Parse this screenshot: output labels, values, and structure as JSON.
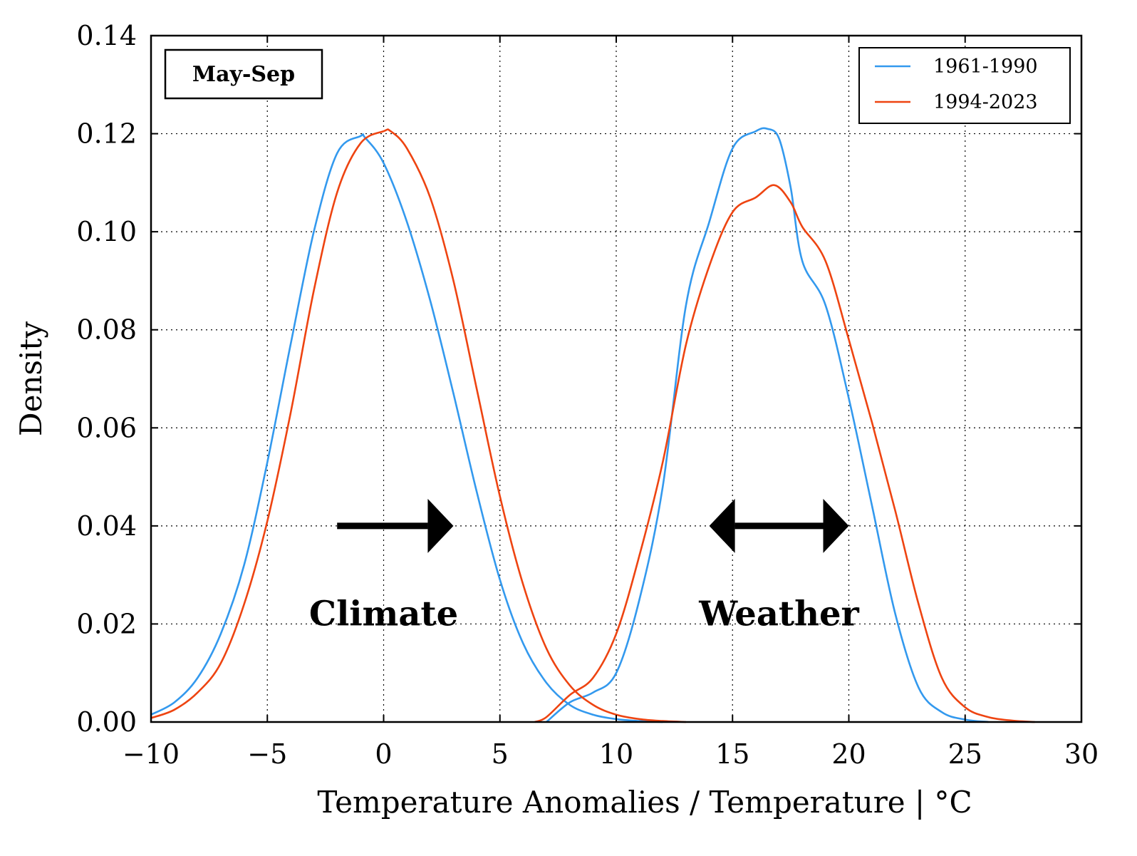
{
  "chart_data": {
    "type": "line",
    "xlabel": "Temperature Anomalies / Temperature | °C",
    "ylabel": "Density",
    "xlim": [
      -10,
      30
    ],
    "ylim": [
      0,
      0.14
    ],
    "x_ticks": [
      -10,
      -5,
      0,
      5,
      10,
      15,
      20,
      25,
      30
    ],
    "x_tick_labels": [
      "−10",
      "−5",
      "0",
      "5",
      "10",
      "15",
      "20",
      "25",
      "30"
    ],
    "y_ticks": [
      0,
      0.02,
      0.04,
      0.06,
      0.08,
      0.1,
      0.12,
      0.14
    ],
    "y_tick_labels": [
      "0.00",
      "0.02",
      "0.04",
      "0.06",
      "0.08",
      "0.10",
      "0.12",
      "0.14"
    ],
    "grid": true,
    "season_label": "May-Sep",
    "legend": {
      "placement": "top-right",
      "entries": [
        "1961-1990",
        "1994-2023"
      ]
    },
    "annotations": [
      {
        "text": "Climate",
        "x": 0,
        "y": 0.022,
        "arrow": "right",
        "arrow_from": -2,
        "arrow_to": 3,
        "arrow_y": 0.04
      },
      {
        "text": "Weather",
        "x": 17,
        "y": 0.022,
        "arrow": "both",
        "arrow_from": 14,
        "arrow_to": 20,
        "arrow_y": 0.04
      }
    ],
    "series": [
      {
        "name": "1961-1990",
        "group": "anomaly",
        "color": "#3399ee",
        "x": [
          -10,
          -9,
          -8,
          -7,
          -6,
          -5,
          -4,
          -3,
          -2,
          -1,
          -0.8,
          0,
          1,
          2,
          3,
          4,
          5,
          6,
          7,
          8,
          9,
          10,
          11,
          12
        ],
        "y": [
          0.0015,
          0.004,
          0.009,
          0.018,
          0.032,
          0.053,
          0.077,
          0.1,
          0.116,
          0.1195,
          0.1192,
          0.114,
          0.102,
          0.086,
          0.067,
          0.047,
          0.029,
          0.016,
          0.008,
          0.0035,
          0.0015,
          0.0006,
          0.0002,
          0
        ]
      },
      {
        "name": "1961-1990",
        "group": "temperature",
        "color": "#3399ee",
        "x": [
          7,
          8,
          9,
          10,
          11,
          12,
          13,
          14,
          15,
          16,
          16.5,
          17,
          17.5,
          18,
          19,
          20,
          21,
          22,
          23,
          24,
          25,
          26
        ],
        "y": [
          0,
          0.004,
          0.006,
          0.01,
          0.025,
          0.048,
          0.085,
          0.102,
          0.117,
          0.1205,
          0.121,
          0.119,
          0.109,
          0.094,
          0.085,
          0.066,
          0.044,
          0.022,
          0.007,
          0.002,
          0.0005,
          0
        ]
      },
      {
        "name": "1994-2023",
        "group": "anomaly",
        "color": "#ee4411",
        "x": [
          -10,
          -9,
          -8,
          -7,
          -6,
          -5,
          -4,
          -3,
          -2,
          -1,
          0,
          0.3,
          1,
          2,
          3,
          4,
          5,
          6,
          7,
          8,
          9,
          10,
          11,
          12,
          13
        ],
        "y": [
          0.0008,
          0.0025,
          0.006,
          0.012,
          0.024,
          0.041,
          0.063,
          0.088,
          0.108,
          0.118,
          0.1205,
          0.1205,
          0.117,
          0.107,
          0.09,
          0.068,
          0.046,
          0.028,
          0.015,
          0.0075,
          0.0035,
          0.0015,
          0.0006,
          0.0002,
          0
        ]
      },
      {
        "name": "1994-2023",
        "group": "temperature",
        "color": "#ee4411",
        "x": [
          6.5,
          7,
          8,
          9,
          10,
          11,
          12,
          13,
          14,
          15,
          16,
          16.8,
          17.5,
          18,
          19,
          20,
          21,
          22,
          23,
          24,
          25,
          26,
          27,
          28
        ],
        "y": [
          0,
          0.001,
          0.0055,
          0.009,
          0.018,
          0.034,
          0.053,
          0.077,
          0.093,
          0.104,
          0.107,
          0.1095,
          0.106,
          0.101,
          0.094,
          0.078,
          0.061,
          0.043,
          0.024,
          0.009,
          0.003,
          0.001,
          0.0003,
          0
        ]
      }
    ]
  }
}
